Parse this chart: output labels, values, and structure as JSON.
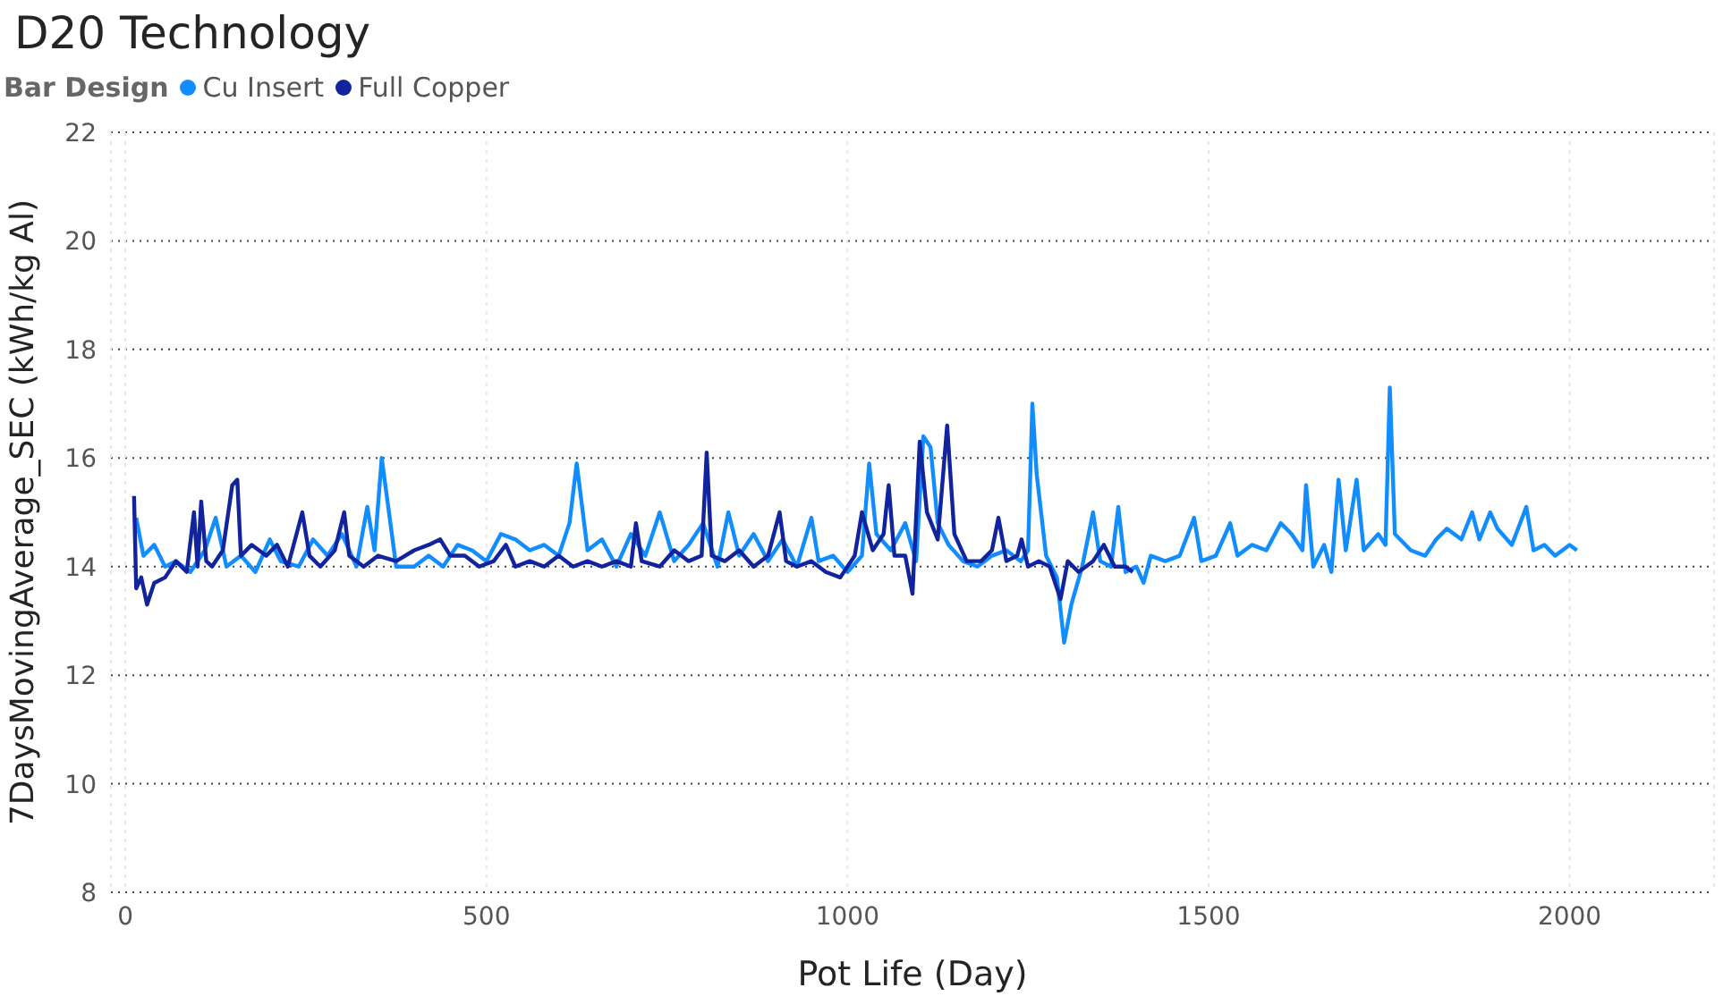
{
  "chart_data": {
    "type": "line",
    "title": "D20 Technology",
    "xlabel": "Pot Life (Day)",
    "ylabel": "7DaysMovingAverage_SEC (kWh/kg Al)",
    "legend_title": "Bar Design",
    "legend": "top left",
    "grid": true,
    "marker": "none",
    "line_style": "solid",
    "xlim": [
      -20,
      2200
    ],
    "xticks": [
      0,
      500,
      1000,
      1500,
      2000
    ],
    "ylim": [
      8,
      22
    ],
    "yticks": [
      8,
      10,
      12,
      14,
      16,
      18,
      20,
      22
    ],
    "series": [
      {
        "name": "Cu Insert",
        "color": "#118dff",
        "x": [
          15,
          25,
          40,
          55,
          70,
          90,
          110,
          125,
          140,
          160,
          180,
          200,
          215,
          240,
          260,
          280,
          300,
          320,
          335,
          345,
          355,
          362,
          375,
          400,
          420,
          440,
          460,
          480,
          500,
          520,
          540,
          560,
          580,
          600,
          615,
          625,
          640,
          660,
          680,
          700,
          720,
          740,
          760,
          780,
          800,
          820,
          835,
          850,
          870,
          890,
          910,
          930,
          950,
          960,
          980,
          1000,
          1020,
          1030,
          1040,
          1060,
          1080,
          1095,
          1105,
          1115,
          1125,
          1140,
          1160,
          1180,
          1200,
          1220,
          1240,
          1250,
          1256,
          1262,
          1275,
          1290,
          1300,
          1310,
          1325,
          1340,
          1350,
          1365,
          1375,
          1385,
          1400,
          1410,
          1420,
          1440,
          1460,
          1480,
          1490,
          1510,
          1530,
          1540,
          1560,
          1580,
          1600,
          1615,
          1630,
          1635,
          1645,
          1660,
          1670,
          1680,
          1690,
          1705,
          1715,
          1735,
          1745,
          1751,
          1758,
          1780,
          1800,
          1815,
          1830,
          1850,
          1865,
          1875,
          1890,
          1900,
          1920,
          1940,
          1950,
          1965,
          1980,
          2000,
          2010
        ],
        "values": [
          14.9,
          14.2,
          14.4,
          14.0,
          14.1,
          13.9,
          14.3,
          14.9,
          14.0,
          14.2,
          13.9,
          14.5,
          14.1,
          14.0,
          14.5,
          14.2,
          14.6,
          14.0,
          15.1,
          14.3,
          16.0,
          15.3,
          14.0,
          14.0,
          14.2,
          14.0,
          14.4,
          14.3,
          14.1,
          14.6,
          14.5,
          14.3,
          14.4,
          14.2,
          14.8,
          15.9,
          14.3,
          14.5,
          14.0,
          14.6,
          14.2,
          15.0,
          14.1,
          14.4,
          14.8,
          14.0,
          15.0,
          14.2,
          14.6,
          14.1,
          14.5,
          14.0,
          14.9,
          14.1,
          14.2,
          13.9,
          14.2,
          15.9,
          14.6,
          14.3,
          14.8,
          14.1,
          16.4,
          16.2,
          14.8,
          14.4,
          14.1,
          14.0,
          14.2,
          14.3,
          14.1,
          14.3,
          17.0,
          15.7,
          14.2,
          13.8,
          12.6,
          13.3,
          14.0,
          15.0,
          14.1,
          14.0,
          15.1,
          13.9,
          14.0,
          13.7,
          14.2,
          14.1,
          14.2,
          14.9,
          14.1,
          14.2,
          14.8,
          14.2,
          14.4,
          14.3,
          14.8,
          14.6,
          14.3,
          15.5,
          14.0,
          14.4,
          13.9,
          15.6,
          14.3,
          15.6,
          14.3,
          14.6,
          14.4,
          17.3,
          14.6,
          14.3,
          14.2,
          14.5,
          14.7,
          14.5,
          15.0,
          14.5,
          15.0,
          14.7,
          14.4,
          15.1,
          14.3,
          14.4,
          14.2,
          14.4,
          14.3
        ]
      },
      {
        "name": "Full Copper",
        "color": "#12239e",
        "x": [
          12,
          15,
          22,
          30,
          40,
          55,
          70,
          85,
          95,
          100,
          105,
          112,
          120,
          135,
          148,
          155,
          160,
          175,
          195,
          210,
          225,
          245,
          255,
          270,
          290,
          303,
          310,
          330,
          350,
          375,
          400,
          420,
          436,
          450,
          470,
          490,
          510,
          527,
          540,
          560,
          580,
          600,
          620,
          640,
          660,
          680,
          700,
          707,
          715,
          740,
          760,
          780,
          798,
          805,
          812,
          830,
          850,
          870,
          890,
          906,
          915,
          930,
          950,
          970,
          990,
          1010,
          1020,
          1035,
          1050,
          1057,
          1065,
          1080,
          1090,
          1100,
          1110,
          1125,
          1138,
          1148,
          1165,
          1185,
          1200,
          1209,
          1220,
          1235,
          1241,
          1250,
          1265,
          1280,
          1295,
          1305,
          1320,
          1340,
          1355,
          1370,
          1385,
          1395
        ],
        "values": [
          15.3,
          13.6,
          13.8,
          13.3,
          13.7,
          13.8,
          14.1,
          13.9,
          15.0,
          14.0,
          15.2,
          14.1,
          14.0,
          14.3,
          15.5,
          15.6,
          14.2,
          14.4,
          14.2,
          14.4,
          14.0,
          15.0,
          14.2,
          14.0,
          14.3,
          15.0,
          14.2,
          14.0,
          14.2,
          14.1,
          14.3,
          14.4,
          14.5,
          14.2,
          14.2,
          14.0,
          14.1,
          14.4,
          14.0,
          14.1,
          14.0,
          14.2,
          14.0,
          14.1,
          14.0,
          14.1,
          14.0,
          14.8,
          14.1,
          14.0,
          14.3,
          14.1,
          14.2,
          16.1,
          14.2,
          14.1,
          14.3,
          14.0,
          14.2,
          15.0,
          14.1,
          14.0,
          14.1,
          13.9,
          13.8,
          14.2,
          15.0,
          14.3,
          14.6,
          15.5,
          14.2,
          14.2,
          13.5,
          16.3,
          15.0,
          14.5,
          16.6,
          14.6,
          14.1,
          14.1,
          14.3,
          14.9,
          14.1,
          14.2,
          14.5,
          14.0,
          14.1,
          14.0,
          13.4,
          14.1,
          13.9,
          14.1,
          14.4,
          14.0,
          14.0,
          13.9
        ]
      }
    ]
  }
}
